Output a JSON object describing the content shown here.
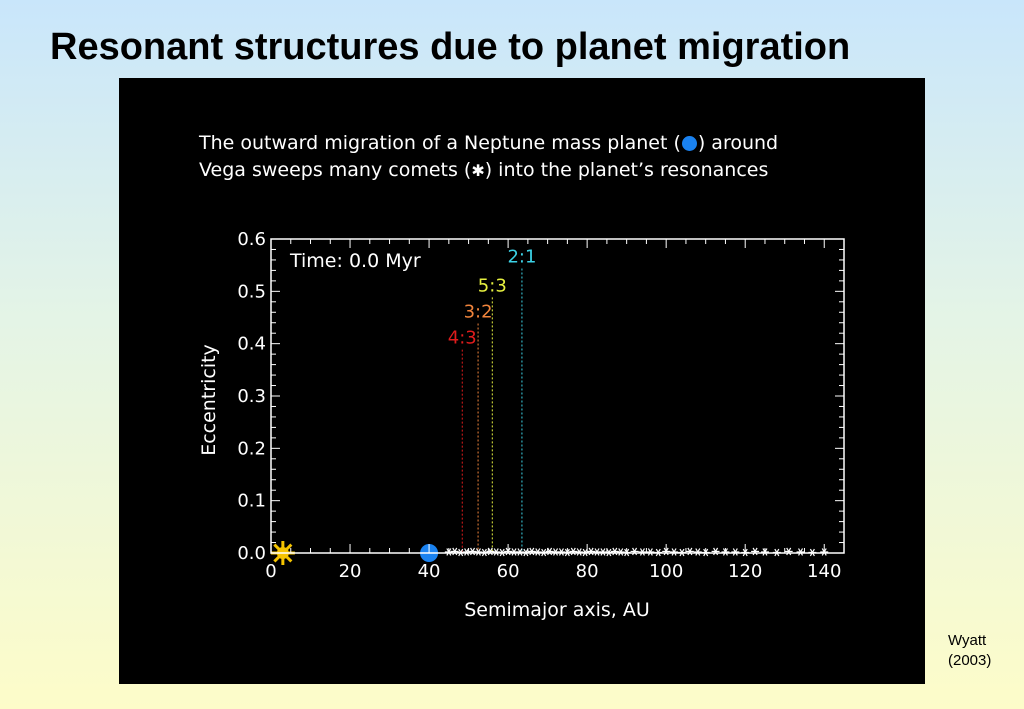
{
  "slide": {
    "title": "Resonant structures due to planet migration",
    "credit_name": "Wyatt",
    "credit_year": "(2003)"
  },
  "caption": {
    "line1_before": "The outward migration of a Neptune mass planet (",
    "line1_after": ") around",
    "line2_before": "Vega sweeps many comets (",
    "line2_after": ") into the planet’s resonances",
    "planet_icon": "filled-blue-circle",
    "comet_icon": "asterisk"
  },
  "chart_data": {
    "type": "scatter",
    "title": "",
    "xlabel": "Semimajor axis, AU",
    "ylabel": "Eccentricity",
    "xlim": [
      0,
      145
    ],
    "ylim": [
      0,
      0.6
    ],
    "xticks": [
      0,
      20,
      40,
      60,
      80,
      100,
      120,
      140
    ],
    "yticks": [
      0.0,
      0.1,
      0.2,
      0.3,
      0.4,
      0.5,
      0.6
    ],
    "ytick_labels": [
      "0.0",
      "0.1",
      "0.2",
      "0.3",
      "0.4",
      "0.5",
      "0.6"
    ],
    "grid": false,
    "annotation": "Time: 0.0 Myr",
    "star": {
      "x": 3,
      "y": 0.0,
      "color": "#f5c400"
    },
    "planet": {
      "x": 40,
      "y": 0.0,
      "color": "#1a82f0"
    },
    "resonances": [
      {
        "label": "4:3",
        "a": 48.4,
        "color": "#e01c1c",
        "label_y": 0.4
      },
      {
        "label": "3:2",
        "a": 52.4,
        "color": "#f0843c",
        "label_y": 0.45
      },
      {
        "label": "5:3",
        "a": 56.0,
        "color": "#e6f040",
        "label_y": 0.5
      },
      {
        "label": "2:1",
        "a": 63.5,
        "color": "#3cd2e6",
        "label_y": 0.555
      }
    ],
    "comets": {
      "x": [
        45,
        46.5,
        48,
        49.5,
        51,
        52.5,
        54,
        55.5,
        57,
        58.5,
        60,
        61.5,
        63,
        64.5,
        66,
        67.5,
        69,
        70.5,
        72,
        73.5,
        75,
        76.5,
        78,
        79.5,
        81,
        82.5,
        84,
        85.5,
        87,
        88.5,
        90,
        92,
        94,
        96,
        98,
        100,
        102,
        104,
        106,
        108,
        110,
        112.5,
        115,
        117.5,
        120,
        122.5,
        125,
        128,
        131,
        134,
        137,
        140
      ],
      "y": [
        0.002,
        0.003,
        0.001,
        0.002,
        0.003,
        0.002,
        0.001,
        0.003,
        0.002,
        0.001,
        0.003,
        0.002,
        0.002,
        0.001,
        0.003,
        0.002,
        0.001,
        0.003,
        0.002,
        0.002,
        0.001,
        0.003,
        0.002,
        0.001,
        0.003,
        0.002,
        0.002,
        0.001,
        0.003,
        0.002,
        0.001,
        0.003,
        0.002,
        0.002,
        0.001,
        0.003,
        0.002,
        0.001,
        0.003,
        0.002,
        0.001,
        0.003,
        0.002,
        0.002,
        0.001,
        0.003,
        0.002,
        0.001,
        0.003,
        0.002,
        0.001,
        0.002
      ]
    }
  }
}
